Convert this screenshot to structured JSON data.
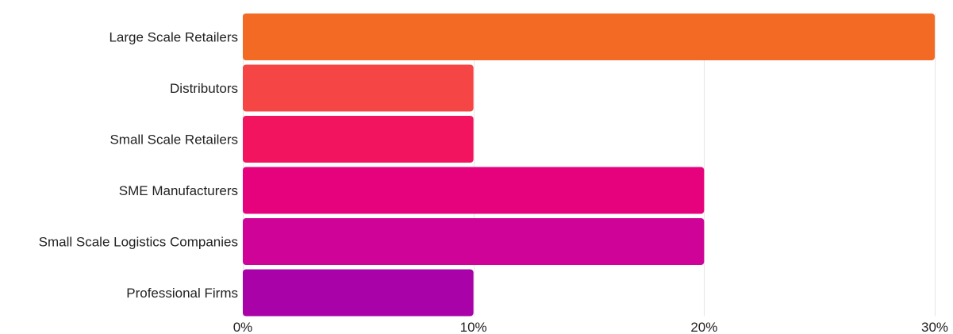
{
  "chart_data": {
    "type": "bar",
    "orientation": "horizontal",
    "title": "",
    "xlabel": "",
    "ylabel": "",
    "categories": [
      "Large Scale Retailers",
      "Distributors",
      "Small Scale Retailers",
      "SME Manufacturers",
      "Small Scale Logistics Companies",
      "Professional Firms"
    ],
    "values": [
      30,
      10,
      10,
      20,
      20,
      10
    ],
    "xlim": [
      0,
      30
    ],
    "x_ticks": [
      0,
      10,
      20,
      30
    ],
    "x_tick_labels": [
      "0%",
      "10%",
      "20%",
      "30%"
    ],
    "grid": true,
    "legend": "none",
    "colors": [
      "#f26a24",
      "#f64545",
      "#f31460",
      "#e6027c",
      "#cf0397",
      "#a902a8"
    ]
  }
}
